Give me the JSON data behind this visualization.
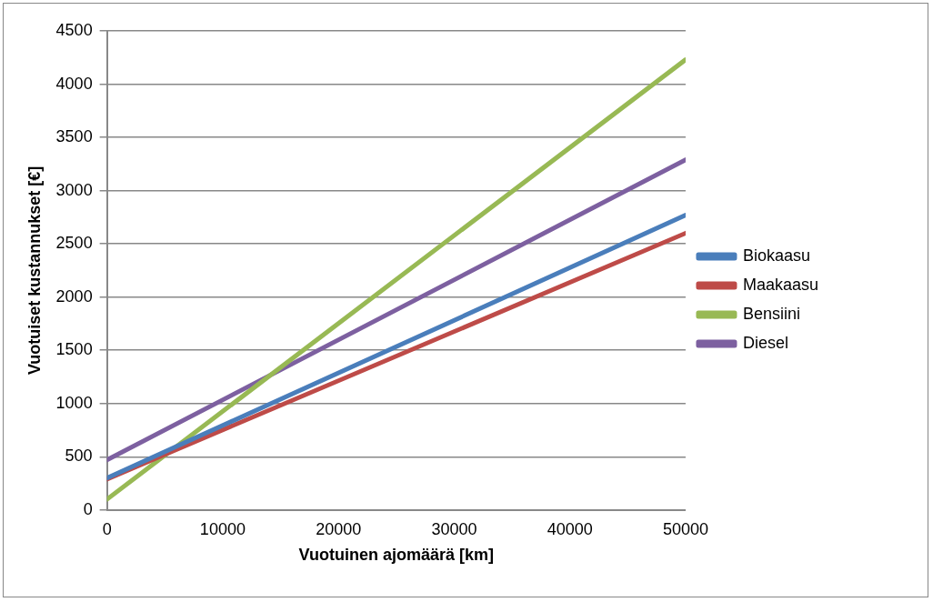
{
  "chart_data": {
    "type": "line",
    "xlabel": "Vuotuinen ajomäärä [km]",
    "ylabel": "Vuotuiset kustannukset [€]",
    "x": [
      0,
      50000
    ],
    "series": [
      {
        "name": "Biokaasu",
        "color": "#4a7ebb",
        "values": [
          300,
          2770
        ]
      },
      {
        "name": "Maakaasu",
        "color": "#be4b48",
        "values": [
          290,
          2600
        ]
      },
      {
        "name": "Bensiini",
        "color": "#98b954",
        "values": [
          100,
          4230
        ]
      },
      {
        "name": "Diesel",
        "color": "#7d60a0",
        "values": [
          470,
          3290
        ]
      }
    ],
    "xlim": [
      0,
      50000
    ],
    "xticks": [
      0,
      10000,
      20000,
      30000,
      40000,
      50000
    ],
    "ylim": [
      0,
      4500
    ],
    "yticks": [
      0,
      500,
      1000,
      1500,
      2000,
      2500,
      3000,
      3500,
      4000,
      4500
    ],
    "grid": "y",
    "legend": "right",
    "marker": "none",
    "line_style": "solid"
  }
}
